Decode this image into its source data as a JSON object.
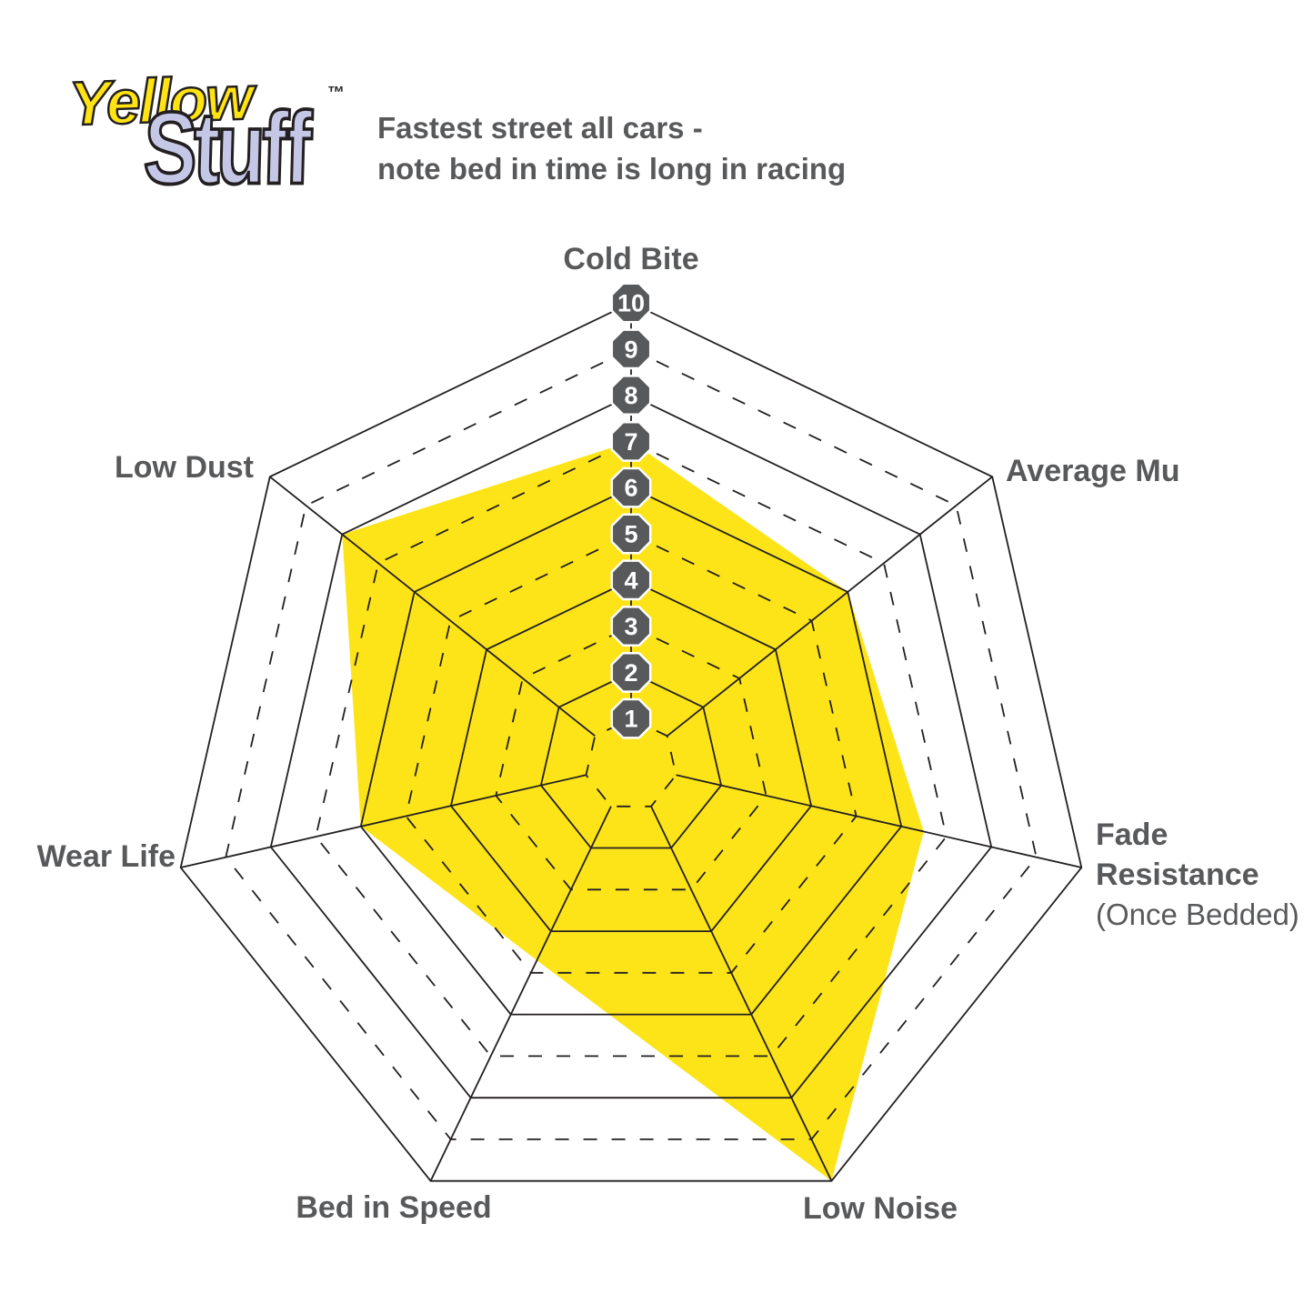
{
  "logo": {
    "line1": "Yellow",
    "line2": "Stuff",
    "trademark": "™"
  },
  "subtitle": {
    "line1": "Fastest street all cars -",
    "line2": "note bed in time is long in racing"
  },
  "chart_data": {
    "type": "radar",
    "title": "Yellowstuff pad compound performance ratings",
    "axes": [
      {
        "label": "Cold Bite",
        "value": 7
      },
      {
        "label": "Average Mu",
        "value": 6
      },
      {
        "label": "Fade Resistance",
        "sublabel": "(Once Bedded)",
        "value": 6.5
      },
      {
        "label": "Low Noise",
        "value": 10
      },
      {
        "label": "Bed in Speed",
        "value": 4.7
      },
      {
        "label": "Wear Life",
        "value": 6
      },
      {
        "label": "Low Dust",
        "value": 8
      }
    ],
    "scale": {
      "min": 1,
      "max": 10,
      "ticks": [
        "1",
        "2",
        "3",
        "4",
        "5",
        "6",
        "7",
        "8",
        "9",
        "10"
      ]
    },
    "grid": {
      "solid_rings": [
        2,
        4,
        6,
        8,
        10
      ],
      "dashed_rings": [
        1,
        3,
        5,
        7,
        9
      ],
      "legend": "none"
    },
    "colors": {
      "fill": "#FCE419",
      "line": "#231F20",
      "label": "#58595B",
      "badge": "#58595B",
      "badge_text": "#FFFFFF",
      "logo_yellow": "#FFE312",
      "logo_lavender": "#C5C7E6"
    }
  }
}
